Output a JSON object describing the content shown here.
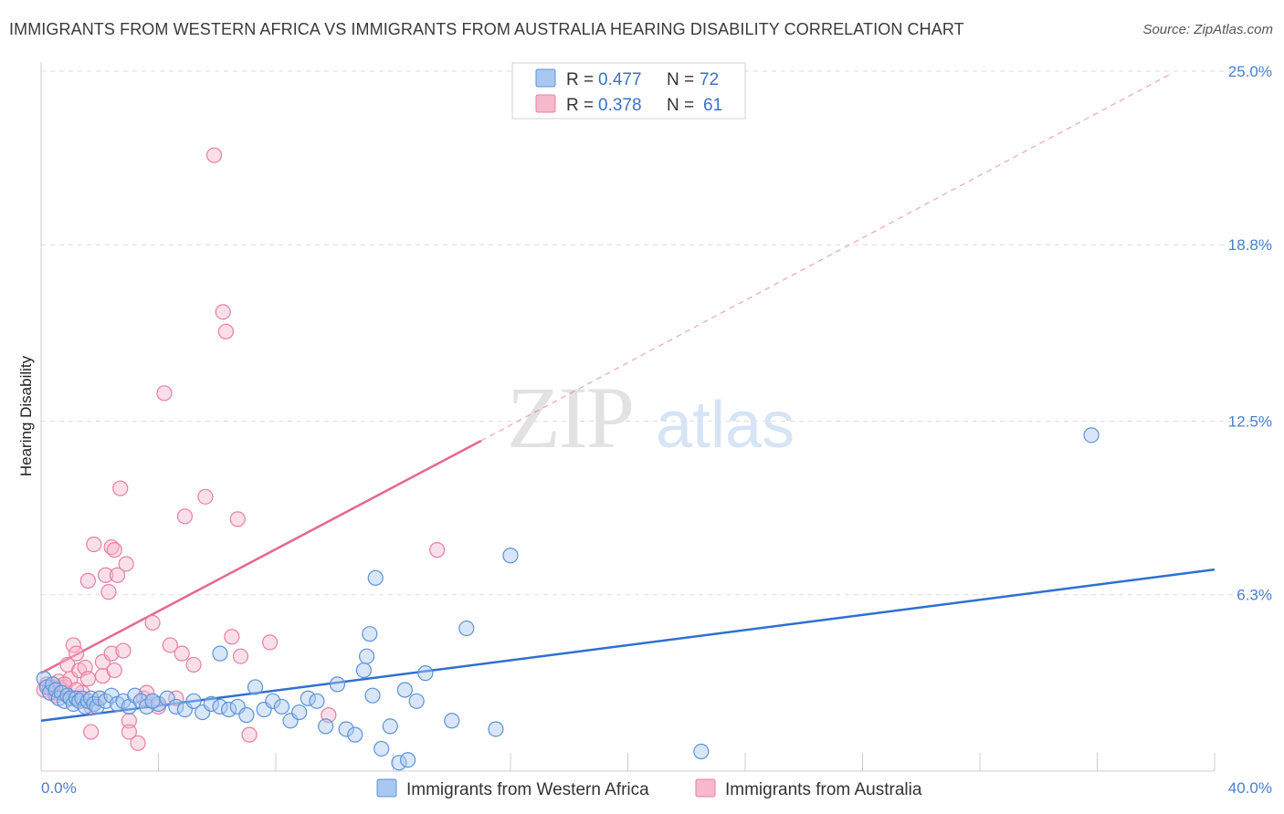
{
  "header": {
    "title": "IMMIGRANTS FROM WESTERN AFRICA VS IMMIGRANTS FROM AUSTRALIA HEARING DISABILITY CORRELATION CHART",
    "source": "Source: ZipAtlas.com"
  },
  "watermark": {
    "zip": "ZIP",
    "atlas": "atlas"
  },
  "legend": {
    "r_label": "R =",
    "n_label": "N =",
    "series": [
      {
        "r": "0.477",
        "n": "72"
      },
      {
        "r": "0.378",
        "n": "61"
      }
    ]
  },
  "colors": {
    "blue_fill": "#a8c8f0",
    "blue_stroke": "#5b93d9",
    "blue_line": "#2f6fd0",
    "pink_fill": "#f7b8cc",
    "pink_stroke": "#e77fa0",
    "pink_line": "#e5688f",
    "grid": "#dedede",
    "tick_text": "#4a7fc8"
  },
  "chart_data": {
    "type": "scatter",
    "title": "IMMIGRANTS FROM WESTERN AFRICA VS IMMIGRANTS FROM AUSTRALIA HEARING DISABILITY CORRELATION CHART",
    "xlabel": "",
    "ylabel": "Hearing Disability",
    "xlim": [
      0,
      40
    ],
    "ylim": [
      0,
      25
    ],
    "x_tick_labels": [
      "0.0%",
      "40.0%"
    ],
    "y_ticks": [
      6.3,
      12.5,
      18.8,
      25.0
    ],
    "y_tick_labels": [
      "6.3%",
      "12.5%",
      "18.8%",
      "25.0%"
    ],
    "grid": true,
    "legend_placement": "top-center",
    "series": [
      {
        "name": "Immigrants from Western Africa",
        "r": 0.477,
        "n": 72,
        "trend": {
          "x": [
            0,
            40
          ],
          "y": [
            1.8,
            7.2
          ],
          "style": "solid"
        },
        "points": [
          [
            0.1,
            3.3
          ],
          [
            0.2,
            3.0
          ],
          [
            0.3,
            2.8
          ],
          [
            0.4,
            3.1
          ],
          [
            0.5,
            2.9
          ],
          [
            0.6,
            2.6
          ],
          [
            0.7,
            2.8
          ],
          [
            0.8,
            2.5
          ],
          [
            0.9,
            2.7
          ],
          [
            1.0,
            2.6
          ],
          [
            1.1,
            2.4
          ],
          [
            1.2,
            2.6
          ],
          [
            1.3,
            2.5
          ],
          [
            1.4,
            2.6
          ],
          [
            1.5,
            2.3
          ],
          [
            1.6,
            2.5
          ],
          [
            1.7,
            2.6
          ],
          [
            1.8,
            2.4
          ],
          [
            1.9,
            2.3
          ],
          [
            2.0,
            2.6
          ],
          [
            2.2,
            2.5
          ],
          [
            2.4,
            2.7
          ],
          [
            2.6,
            2.4
          ],
          [
            2.8,
            2.5
          ],
          [
            3.0,
            2.3
          ],
          [
            3.2,
            2.7
          ],
          [
            3.4,
            2.5
          ],
          [
            3.6,
            2.3
          ],
          [
            3.8,
            2.5
          ],
          [
            4.0,
            2.4
          ],
          [
            4.3,
            2.6
          ],
          [
            4.6,
            2.3
          ],
          [
            4.9,
            2.2
          ],
          [
            5.2,
            2.5
          ],
          [
            5.5,
            2.1
          ],
          [
            5.8,
            2.4
          ],
          [
            6.1,
            2.3
          ],
          [
            6.4,
            2.2
          ],
          [
            6.7,
            2.3
          ],
          [
            7.0,
            2.0
          ],
          [
            7.3,
            3.0
          ],
          [
            7.6,
            2.2
          ],
          [
            7.9,
            2.5
          ],
          [
            8.2,
            2.3
          ],
          [
            8.5,
            1.8
          ],
          [
            8.8,
            2.1
          ],
          [
            9.1,
            2.6
          ],
          [
            9.4,
            2.5
          ],
          [
            9.7,
            1.6
          ],
          [
            10.1,
            3.1
          ],
          [
            10.4,
            1.5
          ],
          [
            10.7,
            1.3
          ],
          [
            11.0,
            3.6
          ],
          [
            11.3,
            2.7
          ],
          [
            11.6,
            0.8
          ],
          [
            11.9,
            1.6
          ],
          [
            12.2,
            0.3
          ],
          [
            11.4,
            6.9
          ],
          [
            11.2,
            4.9
          ],
          [
            11.1,
            4.1
          ],
          [
            12.5,
            0.4
          ],
          [
            12.4,
            2.9
          ],
          [
            13.1,
            3.5
          ],
          [
            12.8,
            2.5
          ],
          [
            14.0,
            1.8
          ],
          [
            14.5,
            5.1
          ],
          [
            15.5,
            1.5
          ],
          [
            16.0,
            7.7
          ],
          [
            6.1,
            4.2
          ],
          [
            22.5,
            0.7
          ],
          [
            35.8,
            12.0
          ],
          [
            3.8,
            2.5
          ]
        ]
      },
      {
        "name": "Immigrants from Australia",
        "r": 0.378,
        "n": 61,
        "trend_solid": {
          "x": [
            0,
            15
          ],
          "y": [
            3.5,
            11.8
          ]
        },
        "trend_dashed": {
          "x": [
            15,
            38.5
          ],
          "y": [
            11.8,
            24.9
          ]
        },
        "points": [
          [
            0.1,
            2.9
          ],
          [
            0.2,
            3.1
          ],
          [
            0.3,
            2.8
          ],
          [
            0.4,
            3.0
          ],
          [
            0.5,
            2.8
          ],
          [
            0.6,
            3.2
          ],
          [
            0.7,
            2.9
          ],
          [
            0.8,
            3.0
          ],
          [
            0.9,
            3.8
          ],
          [
            1.0,
            3.3
          ],
          [
            1.1,
            4.5
          ],
          [
            1.2,
            4.2
          ],
          [
            1.3,
            3.6
          ],
          [
            1.4,
            2.8
          ],
          [
            1.5,
            3.7
          ],
          [
            1.6,
            3.3
          ],
          [
            1.7,
            2.3
          ],
          [
            1.6,
            6.8
          ],
          [
            1.7,
            1.4
          ],
          [
            1.8,
            8.1
          ],
          [
            2.0,
            2.6
          ],
          [
            2.1,
            3.9
          ],
          [
            2.1,
            3.4
          ],
          [
            2.2,
            7.0
          ],
          [
            2.3,
            6.4
          ],
          [
            2.4,
            4.2
          ],
          [
            2.4,
            8.0
          ],
          [
            2.5,
            3.6
          ],
          [
            2.5,
            7.9
          ],
          [
            2.6,
            7.0
          ],
          [
            2.7,
            10.1
          ],
          [
            2.8,
            4.3
          ],
          [
            2.9,
            7.4
          ],
          [
            3.0,
            1.8
          ],
          [
            3.0,
            1.4
          ],
          [
            3.3,
            1.0
          ],
          [
            3.5,
            2.6
          ],
          [
            3.6,
            2.8
          ],
          [
            3.8,
            5.3
          ],
          [
            4.0,
            2.3
          ],
          [
            4.2,
            13.5
          ],
          [
            4.4,
            4.5
          ],
          [
            4.6,
            2.6
          ],
          [
            4.8,
            4.2
          ],
          [
            4.9,
            9.1
          ],
          [
            5.2,
            3.8
          ],
          [
            5.6,
            9.8
          ],
          [
            5.9,
            22.0
          ],
          [
            6.2,
            16.4
          ],
          [
            6.3,
            15.7
          ],
          [
            6.5,
            4.8
          ],
          [
            6.7,
            9.0
          ],
          [
            6.8,
            4.1
          ],
          [
            7.1,
            1.3
          ],
          [
            7.8,
            4.6
          ],
          [
            9.8,
            2.0
          ],
          [
            13.5,
            7.9
          ],
          [
            0.3,
            3.0
          ],
          [
            0.5,
            2.7
          ],
          [
            0.8,
            3.1
          ],
          [
            1.2,
            2.9
          ]
        ]
      }
    ]
  },
  "bottom_legend": {
    "items": [
      {
        "label": "Immigrants from Western Africa"
      },
      {
        "label": "Immigrants from Australia"
      }
    ]
  }
}
